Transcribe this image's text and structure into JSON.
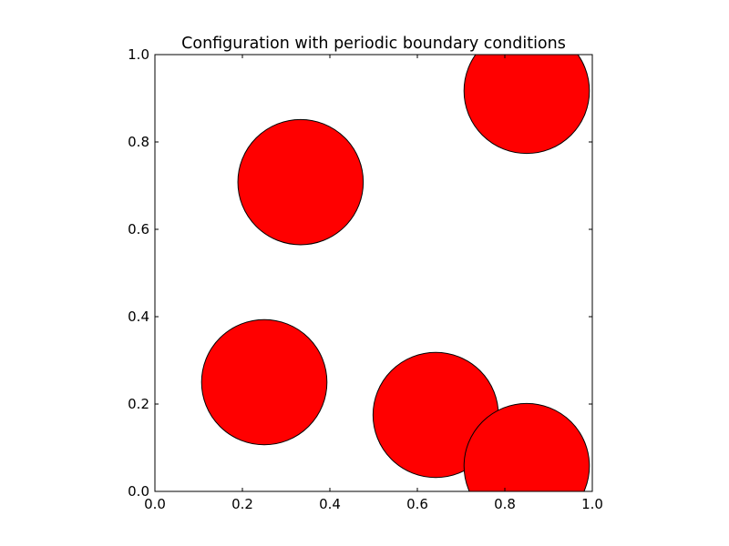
{
  "chart_data": {
    "type": "scatter",
    "title": "Configuration with periodic boundary conditions",
    "xlabel": "",
    "ylabel": "",
    "xlim": [
      0.0,
      1.0
    ],
    "ylim": [
      0.0,
      1.0
    ],
    "xticks": [
      "0.0",
      "0.2",
      "0.4",
      "0.6",
      "0.8",
      "1.0"
    ],
    "yticks": [
      "0.0",
      "0.2",
      "0.4",
      "0.6",
      "0.8",
      "1.0"
    ],
    "grid": false,
    "marker": "circle",
    "marker_radius": 0.1433,
    "colors": {
      "face": "#ff0000",
      "edge": "#000000"
    },
    "points": [
      {
        "x": 0.333,
        "y": 0.708
      },
      {
        "x": 0.85,
        "y": 0.917
      },
      {
        "x": 0.25,
        "y": 0.25
      },
      {
        "x": 0.642,
        "y": 0.175
      },
      {
        "x": 0.85,
        "y": 0.058
      }
    ]
  }
}
